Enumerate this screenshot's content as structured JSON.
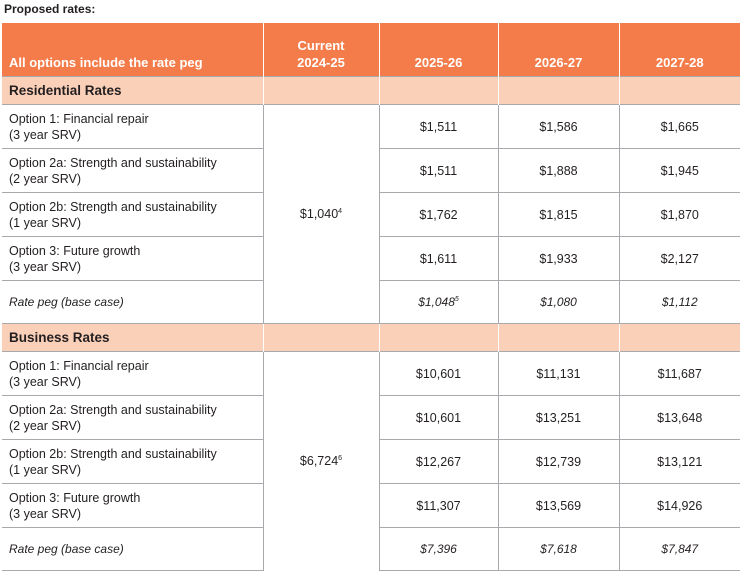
{
  "caption": "Proposed rates:",
  "header": {
    "col0": "All options include the rate peg",
    "current_line1": "Current",
    "current_line2": "2024-25",
    "y1": "2025-26",
    "y2": "2026-27",
    "y3": "2027-28"
  },
  "residential": {
    "title": "Residential Rates",
    "current": "$1,040",
    "current_note": "4",
    "rows": [
      {
        "line1": "Option 1: Financial repair",
        "line2": "(3 year SRV)",
        "v1": "$1,511",
        "v2": "$1,586",
        "v3": "$1,665"
      },
      {
        "line1": "Option 2a: Strength and sustainability",
        "line2": "(2 year SRV)",
        "v1": "$1,511",
        "v2": "$1,888",
        "v3": "$1,945"
      },
      {
        "line1": "Option 2b: Strength and sustainability",
        "line2": "(1 year SRV)",
        "v1": "$1,762",
        "v2": "$1,815",
        "v3": "$1,870"
      },
      {
        "line1": "Option 3: Future growth",
        "line2": "(3 year SRV)",
        "v1": "$1,611",
        "v2": "$1,933",
        "v3": "$2,127"
      }
    ],
    "peg": {
      "label": "Rate peg (base case)",
      "v1": "$1,048",
      "v1_note": "5",
      "v2": "$1,080",
      "v3": "$1,112"
    }
  },
  "business": {
    "title": "Business Rates",
    "current": "$6,724",
    "current_note": "6",
    "rows": [
      {
        "line1": "Option 1: Financial repair",
        "line2": "(3 year SRV)",
        "v1": "$10,601",
        "v2": "$11,131",
        "v3": "$11,687"
      },
      {
        "line1": "Option 2a: Strength and sustainability",
        "line2": "(2 year SRV)",
        "v1": "$10,601",
        "v2": "$13,251",
        "v3": "$13,648"
      },
      {
        "line1": "Option 2b: Strength and sustainability",
        "line2": "(1 year SRV)",
        "v1": "$12,267",
        "v2": "$12,739",
        "v3": "$13,121"
      },
      {
        "line1": "Option 3: Future growth",
        "line2": "(3 year SRV)",
        "v1": "$11,307",
        "v2": "$13,569",
        "v3": "$14,926"
      }
    ],
    "peg": {
      "label": "Rate peg (base case)",
      "v1": "$7,396",
      "v2": "$7,618",
      "v3": "$7,847"
    }
  },
  "colors": {
    "header_bg": "#f47c4a",
    "section_bg": "#fbd0b8",
    "rule": "#a7a9ac"
  }
}
